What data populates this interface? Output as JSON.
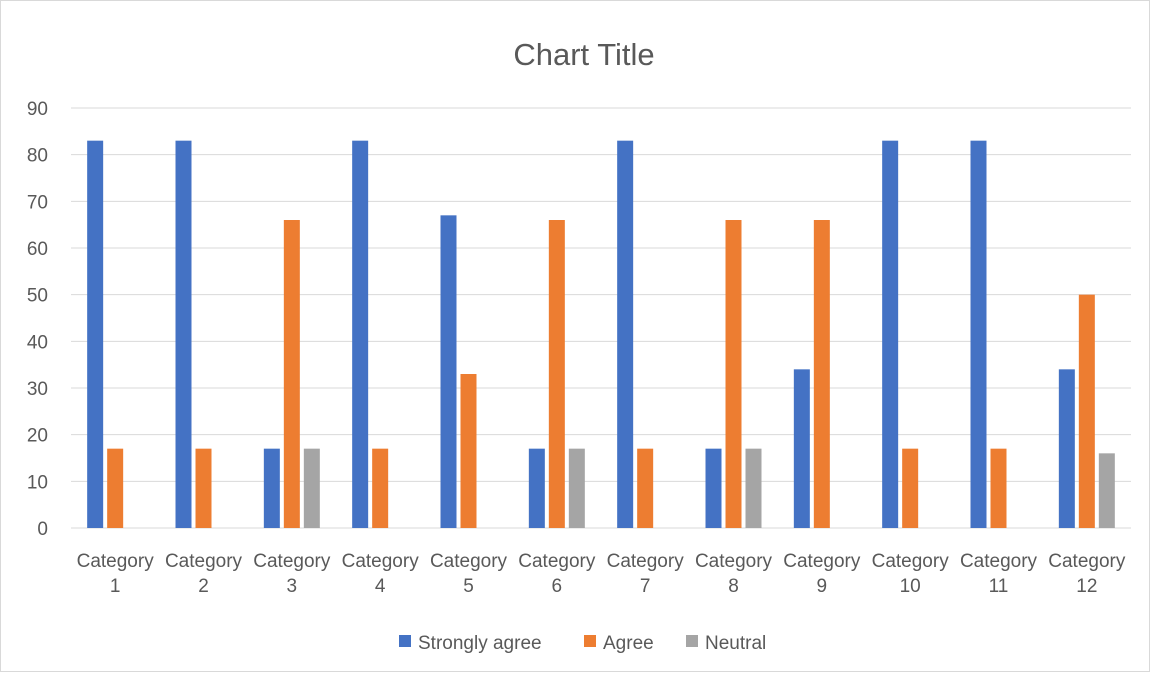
{
  "chart_data": {
    "type": "bar",
    "title": "Chart Title",
    "categories": [
      [
        "Category",
        "1"
      ],
      [
        "Category",
        "2"
      ],
      [
        "Category",
        "3"
      ],
      [
        "Category",
        "4"
      ],
      [
        "Category",
        "5"
      ],
      [
        "Category",
        "6"
      ],
      [
        "Category",
        "7"
      ],
      [
        "Category",
        "8"
      ],
      [
        "Category",
        "9"
      ],
      [
        "Category",
        "10"
      ],
      [
        "Category",
        "11"
      ],
      [
        "Category",
        "12"
      ]
    ],
    "series": [
      {
        "name": "Strongly agree",
        "color": "#4472C4",
        "values": [
          83,
          83,
          17,
          83,
          67,
          17,
          83,
          17,
          34,
          83,
          83,
          34
        ]
      },
      {
        "name": "Agree",
        "color": "#ED7D31",
        "values": [
          17,
          17,
          66,
          17,
          33,
          66,
          17,
          66,
          66,
          17,
          17,
          50
        ]
      },
      {
        "name": "Neutral",
        "color": "#A5A5A5",
        "values": [
          0,
          0,
          17,
          0,
          0,
          17,
          0,
          17,
          0,
          0,
          0,
          16
        ]
      }
    ],
    "ylim": [
      0,
      90
    ],
    "yticks": [
      0,
      10,
      20,
      30,
      40,
      50,
      60,
      70,
      80,
      90
    ],
    "grid": true,
    "legend_position": "bottom"
  }
}
